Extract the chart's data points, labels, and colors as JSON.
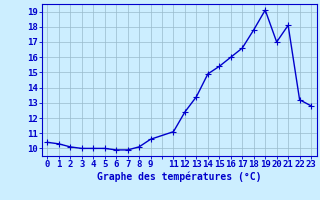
{
  "x": [
    0,
    1,
    2,
    3,
    4,
    5,
    6,
    7,
    8,
    9,
    11,
    12,
    13,
    14,
    15,
    16,
    17,
    18,
    19,
    20,
    21,
    22,
    23
  ],
  "y": [
    10.4,
    10.3,
    10.1,
    10.0,
    10.0,
    10.0,
    9.9,
    9.9,
    10.1,
    10.6,
    11.1,
    12.4,
    13.4,
    14.9,
    15.4,
    16.0,
    16.6,
    17.8,
    19.1,
    17.0,
    18.1,
    13.2,
    12.8
  ],
  "line_color": "#0000cc",
  "marker": "+",
  "marker_size": 4,
  "bg_color": "#cceeff",
  "grid_color": "#99bbcc",
  "xlabel": "Graphe des températures (°C)",
  "xlabel_fontsize": 7,
  "xtick_labels": [
    "0",
    "1",
    "2",
    "3",
    "4",
    "5",
    "6",
    "7",
    "8",
    "9",
    "",
    "11",
    "12",
    "13",
    "14",
    "15",
    "16",
    "17",
    "18",
    "19",
    "20",
    "21",
    "22",
    "23"
  ],
  "ytick_min": 10,
  "ytick_max": 19,
  "tick_color": "#0000cc",
  "tick_fontsize": 6.5,
  "axis_color": "#0000cc",
  "linewidth": 1.0
}
